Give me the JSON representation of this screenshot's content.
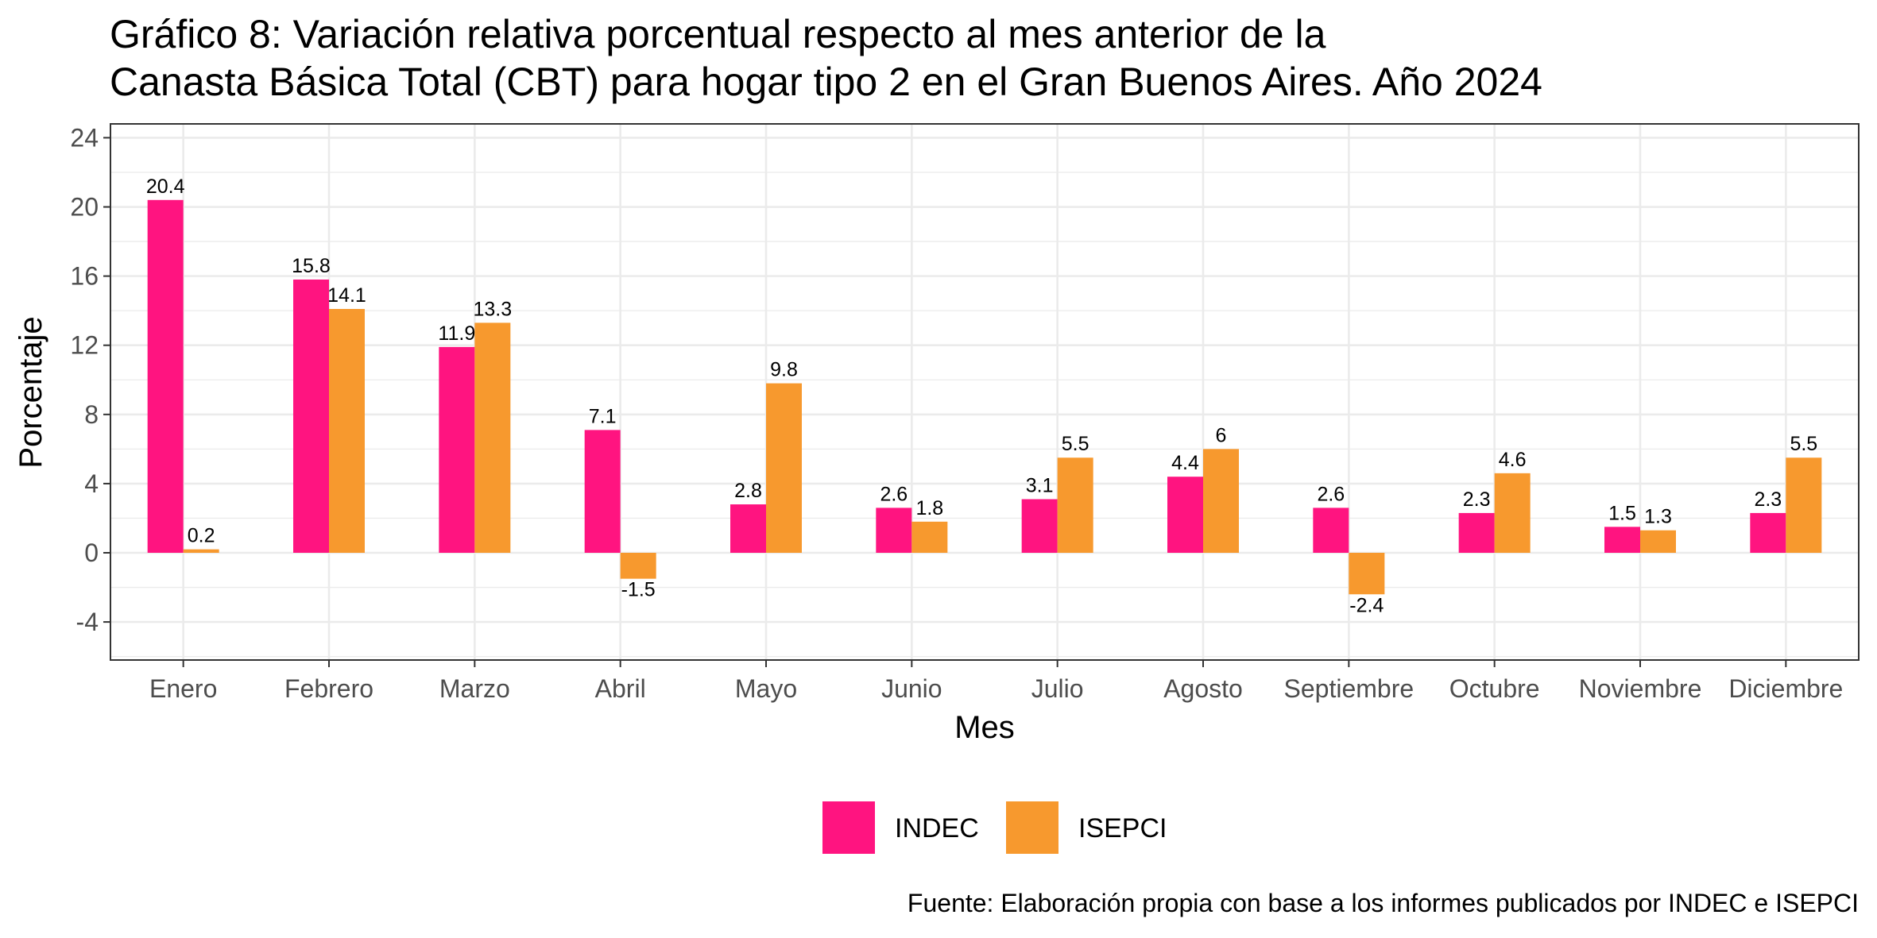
{
  "chart_data": {
    "type": "bar",
    "title": [
      "Gráfico 8: Variación relativa porcentual respecto al mes anterior de la",
      "Canasta Básica Total (CBT) para hogar tipo 2 en el Gran Buenos Aires. Año 2024"
    ],
    "xlabel": "Mes",
    "ylabel": "Porcentaje",
    "caption": "Fuente: Elaboración propia con base a los informes publicados por INDEC e ISEPCI",
    "categories": [
      "Enero",
      "Febrero",
      "Marzo",
      "Abril",
      "Mayo",
      "Junio",
      "Julio",
      "Agosto",
      "Septiembre",
      "Octubre",
      "Noviembre",
      "Diciembre"
    ],
    "series": [
      {
        "name": "INDEC",
        "color": "#FF1480",
        "values": [
          20.4,
          15.8,
          11.9,
          7.1,
          2.8,
          2.6,
          3.1,
          4.4,
          2.6,
          2.3,
          1.5,
          2.3
        ]
      },
      {
        "name": "ISEPCI",
        "color": "#F7992E",
        "values": [
          0.2,
          14.1,
          13.3,
          -1.5,
          9.8,
          1.8,
          5.5,
          6,
          -2.4,
          4.6,
          1.3,
          5.5
        ]
      }
    ],
    "ylim": [
      -6.2,
      24.8
    ],
    "yticks": [
      -4,
      0,
      4,
      8,
      12,
      16,
      20,
      24
    ],
    "grid": true,
    "legend_position": "bottom"
  }
}
